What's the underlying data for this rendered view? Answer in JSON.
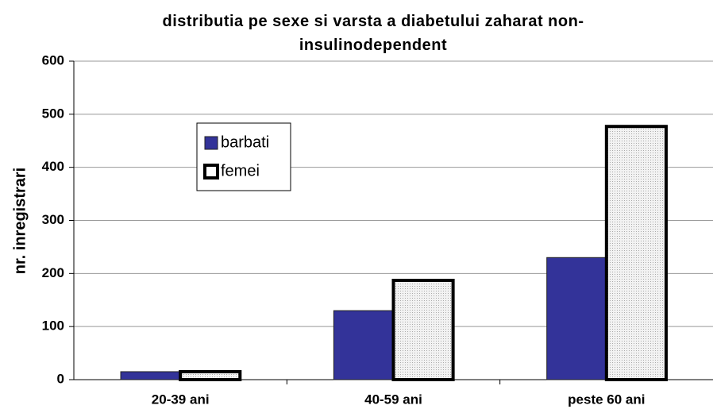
{
  "chart_data": {
    "type": "bar",
    "title": "distributia pe sexe si varsta a diabetului zaharat non-insulinodependent",
    "y_label": "nr. inregistrari",
    "categories": [
      "20-39 ani",
      "40-59 ani",
      "peste 60 ani"
    ],
    "series": [
      {
        "name": "barbati",
        "color": "#333399",
        "values": [
          15,
          130,
          230
        ]
      },
      {
        "name": "femei",
        "color": "#e4e4e4",
        "values": [
          15,
          187,
          477
        ]
      }
    ],
    "ylim": [
      0,
      600
    ],
    "yticks": [
      0,
      100,
      200,
      300,
      400,
      500,
      600
    ],
    "grid": true
  }
}
